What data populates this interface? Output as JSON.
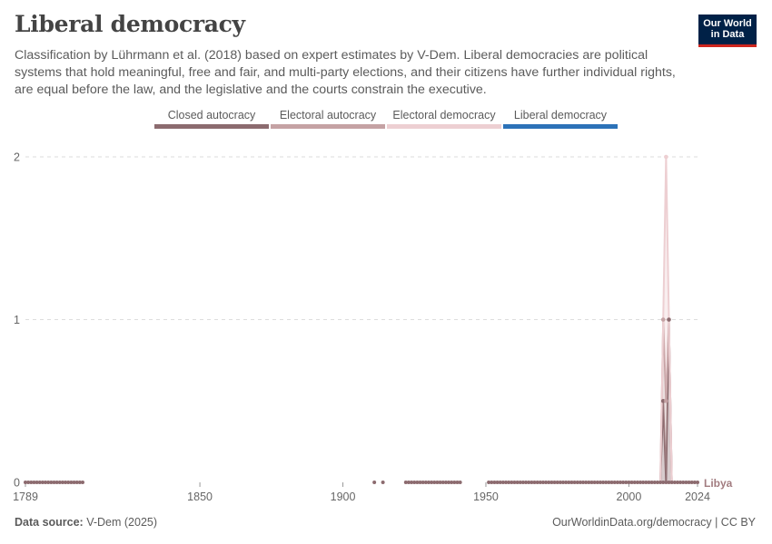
{
  "header": {
    "title": "Liberal democracy",
    "subtitle": "Classification by Lührmann et al. (2018) based on expert estimates by V-Dem. Liberal democracies are political systems that hold meaningful, free and fair, and multi-party elections, and their citizens have further individual rights, are equal before the law, and the legislative and the courts constrain the executive."
  },
  "logo": {
    "line1": "Our World",
    "line2": "in Data",
    "bg_color": "#002147",
    "accent_color": "#ce261e"
  },
  "footer": {
    "source_label": "Data source:",
    "source_value": "V-Dem (2025)",
    "url": "OurWorldinData.org/democracy | CC BY"
  },
  "chart_data": {
    "type": "area",
    "title": "Liberal democracy",
    "entity": "Libya",
    "xlabel": "",
    "ylabel": "",
    "xlim": [
      1789,
      2024
    ],
    "ylim": [
      0,
      2
    ],
    "x_ticks": [
      1789,
      1850,
      1900,
      1950,
      2000,
      2024
    ],
    "y_ticks": [
      0,
      1,
      2
    ],
    "grid": "horizontal dashed",
    "legend_position": "top",
    "stacked": true,
    "legend": [
      {
        "name": "Closed autocracy",
        "color": "#8c6b6f"
      },
      {
        "name": "Electoral autocracy",
        "color": "#c5a2a4"
      },
      {
        "name": "Electoral democracy",
        "color": "#edcfd2"
      },
      {
        "name": "Liberal democracy",
        "color": "#2c72b8"
      }
    ],
    "segments": [
      [
        1789,
        1809
      ],
      [
        1911,
        1911
      ],
      [
        1914,
        1914
      ],
      [
        1922,
        1941
      ],
      [
        1951,
        2024
      ]
    ],
    "nonzero_points": [
      {
        "x": 2012,
        "series": "Closed autocracy",
        "y": 0.5
      },
      {
        "x": 2012,
        "series": "Electoral autocracy",
        "y": 0.5
      },
      {
        "x": 2013,
        "series": "Electoral autocracy",
        "y": 0.5
      },
      {
        "x": 2013,
        "series": "Electoral democracy",
        "y": 1.5
      },
      {
        "x": 2014,
        "series": "Closed autocracy",
        "y": 1
      }
    ],
    "end_label": "Libya"
  }
}
